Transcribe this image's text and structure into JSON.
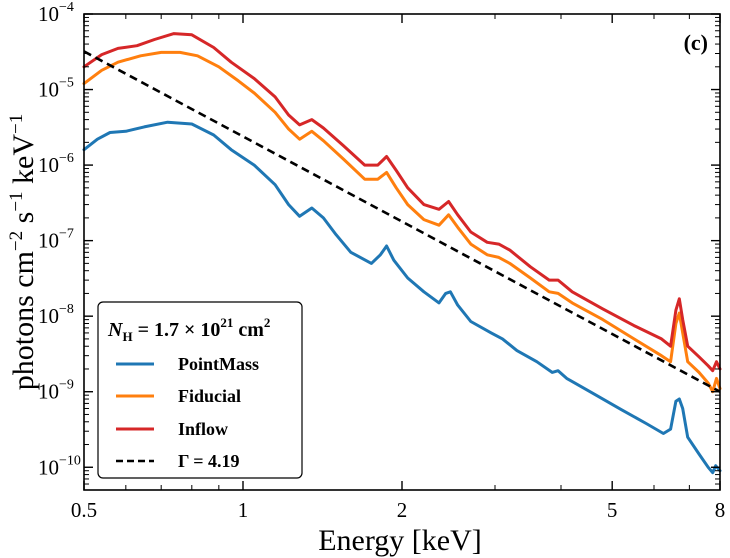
{
  "chart_data": {
    "type": "line",
    "panel_label": "(c)",
    "xlabel": "Energy [keV]",
    "ylabel": "photons cm",
    "ylabel_parts": {
      "a": "photons cm",
      "b": "−2",
      "c": " s",
      "d": "−1",
      "e": " keV",
      "f": "−1"
    },
    "xscale": "log",
    "yscale": "log",
    "xlim": [
      0.5,
      8
    ],
    "ylim": [
      5e-11,
      0.0001
    ],
    "x_ticks": [
      {
        "value": 0.5,
        "label": "0.5"
      },
      {
        "value": 1,
        "label": "1"
      },
      {
        "value": 2,
        "label": "2"
      },
      {
        "value": 5,
        "label": "5"
      },
      {
        "value": 8,
        "label": "8"
      }
    ],
    "y_ticks": [
      {
        "value": 1e-10,
        "base": "10",
        "exp": "−10"
      },
      {
        "value": 1e-09,
        "base": "10",
        "exp": "−9"
      },
      {
        "value": 1e-08,
        "base": "10",
        "exp": "−8"
      },
      {
        "value": 1e-07,
        "base": "10",
        "exp": "−7"
      },
      {
        "value": 1e-06,
        "base": "10",
        "exp": "−6"
      },
      {
        "value": 1e-05,
        "base": "10",
        "exp": "−5"
      },
      {
        "value": 0.0001,
        "base": "10",
        "exp": "−4"
      }
    ],
    "legend": {
      "placement": "lower-left",
      "title": {
        "N": "N",
        "H": "H",
        "eq": " = 1.7 × 10",
        "exp": "21",
        "unit": " cm",
        "unit_exp": "2"
      }
    },
    "series": [
      {
        "name": "PointMass",
        "color": "#1f77b4",
        "style": "solid",
        "points": [
          [
            0.5,
            1.6e-06
          ],
          [
            0.53,
            2.2e-06
          ],
          [
            0.56,
            2.7e-06
          ],
          [
            0.6,
            2.8e-06
          ],
          [
            0.65,
            3.2e-06
          ],
          [
            0.72,
            3.7e-06
          ],
          [
            0.8,
            3.5e-06
          ],
          [
            0.88,
            2.5e-06
          ],
          [
            0.95,
            1.6e-06
          ],
          [
            1.05,
            1e-06
          ],
          [
            1.15,
            5.5e-07
          ],
          [
            1.22,
            3e-07
          ],
          [
            1.28,
            2.1e-07
          ],
          [
            1.35,
            2.7e-07
          ],
          [
            1.42,
            2e-07
          ],
          [
            1.5,
            1.2e-07
          ],
          [
            1.6,
            7e-08
          ],
          [
            1.75,
            5e-08
          ],
          [
            1.82,
            6.5e-08
          ],
          [
            1.87,
            8.5e-08
          ],
          [
            1.93,
            5.5e-08
          ],
          [
            2.05,
            3.2e-08
          ],
          [
            2.2,
            2.1e-08
          ],
          [
            2.35,
            1.5e-08
          ],
          [
            2.42,
            2e-08
          ],
          [
            2.47,
            2.1e-08
          ],
          [
            2.55,
            1.4e-08
          ],
          [
            2.7,
            8.5e-09
          ],
          [
            2.95,
            6e-09
          ],
          [
            3.1,
            5e-09
          ],
          [
            3.3,
            3.5e-09
          ],
          [
            3.6,
            2.5e-09
          ],
          [
            3.85,
            1.8e-09
          ],
          [
            3.95,
            1.9e-09
          ],
          [
            4.1,
            1.5e-09
          ],
          [
            4.6,
            9.5e-10
          ],
          [
            5.2,
            5.8e-10
          ],
          [
            5.8,
            3.8e-10
          ],
          [
            6.25,
            2.8e-10
          ],
          [
            6.45,
            3.2e-10
          ],
          [
            6.6,
            7.5e-10
          ],
          [
            6.7,
            8e-10
          ],
          [
            6.8,
            6e-10
          ],
          [
            6.95,
            2.5e-10
          ],
          [
            7.3,
            1.5e-10
          ],
          [
            7.6,
            1e-10
          ],
          [
            7.75,
            8.5e-11
          ],
          [
            7.85,
            1.05e-10
          ],
          [
            8.0,
            9e-11
          ]
        ]
      },
      {
        "name": "Fiducial",
        "color": "#ff7f0e",
        "style": "solid",
        "points": [
          [
            0.5,
            1.2e-05
          ],
          [
            0.54,
            1.8e-05
          ],
          [
            0.58,
            2.3e-05
          ],
          [
            0.64,
            2.8e-05
          ],
          [
            0.7,
            3.1e-05
          ],
          [
            0.76,
            3.1e-05
          ],
          [
            0.82,
            2.8e-05
          ],
          [
            0.9,
            2e-05
          ],
          [
            0.98,
            1.3e-05
          ],
          [
            1.05,
            9e-06
          ],
          [
            1.15,
            5e-06
          ],
          [
            1.22,
            3e-06
          ],
          [
            1.28,
            2.2e-06
          ],
          [
            1.35,
            2.8e-06
          ],
          [
            1.42,
            2.1e-06
          ],
          [
            1.55,
            1.2e-06
          ],
          [
            1.7,
            6.5e-07
          ],
          [
            1.8,
            6.5e-07
          ],
          [
            1.87,
            8e-07
          ],
          [
            1.95,
            5e-07
          ],
          [
            2.05,
            3e-07
          ],
          [
            2.2,
            1.9e-07
          ],
          [
            2.35,
            1.6e-07
          ],
          [
            2.45,
            2.2e-07
          ],
          [
            2.55,
            1.5e-07
          ],
          [
            2.7,
            9e-08
          ],
          [
            2.9,
            6.5e-08
          ],
          [
            3.05,
            6e-08
          ],
          [
            3.2,
            5e-08
          ],
          [
            3.5,
            3.2e-08
          ],
          [
            3.8,
            2.1e-08
          ],
          [
            3.95,
            2e-08
          ],
          [
            4.2,
            1.5e-08
          ],
          [
            4.8,
            9e-09
          ],
          [
            5.5,
            5e-09
          ],
          [
            6.2,
            3e-09
          ],
          [
            6.45,
            2.5e-09
          ],
          [
            6.6,
            8e-09
          ],
          [
            6.7,
            1.1e-08
          ],
          [
            6.8,
            6e-09
          ],
          [
            6.95,
            2.5e-09
          ],
          [
            7.3,
            1.8e-09
          ],
          [
            7.6,
            1.3e-09
          ],
          [
            7.75,
            1e-09
          ],
          [
            7.88,
            1.5e-09
          ],
          [
            8.0,
            1.1e-09
          ]
        ]
      },
      {
        "name": "Inflow",
        "color": "#d62728",
        "style": "solid",
        "points": [
          [
            0.5,
            2e-05
          ],
          [
            0.54,
            2.9e-05
          ],
          [
            0.58,
            3.5e-05
          ],
          [
            0.63,
            3.8e-05
          ],
          [
            0.68,
            4.6e-05
          ],
          [
            0.74,
            5.5e-05
          ],
          [
            0.8,
            5.3e-05
          ],
          [
            0.88,
            3.6e-05
          ],
          [
            0.95,
            2.3e-05
          ],
          [
            1.05,
            1.4e-05
          ],
          [
            1.15,
            8e-06
          ],
          [
            1.22,
            4.6e-06
          ],
          [
            1.28,
            3.4e-06
          ],
          [
            1.35,
            4e-06
          ],
          [
            1.42,
            3.1e-06
          ],
          [
            1.55,
            1.8e-06
          ],
          [
            1.7,
            1e-06
          ],
          [
            1.8,
            1e-06
          ],
          [
            1.87,
            1.3e-06
          ],
          [
            1.95,
            8.5e-07
          ],
          [
            2.05,
            5e-07
          ],
          [
            2.2,
            3e-07
          ],
          [
            2.35,
            2.6e-07
          ],
          [
            2.45,
            3.3e-07
          ],
          [
            2.55,
            2.2e-07
          ],
          [
            2.7,
            1.3e-07
          ],
          [
            2.9,
            9.5e-08
          ],
          [
            3.05,
            9e-08
          ],
          [
            3.2,
            7.5e-08
          ],
          [
            3.5,
            4.5e-08
          ],
          [
            3.8,
            3e-08
          ],
          [
            3.95,
            3e-08
          ],
          [
            4.2,
            2.1e-08
          ],
          [
            4.8,
            1.25e-08
          ],
          [
            5.5,
            7.5e-09
          ],
          [
            6.2,
            5e-09
          ],
          [
            6.45,
            4e-09
          ],
          [
            6.6,
            1.2e-08
          ],
          [
            6.7,
            1.7e-08
          ],
          [
            6.8,
            9e-09
          ],
          [
            6.95,
            4e-09
          ],
          [
            7.3,
            2.9e-09
          ],
          [
            7.6,
            2.2e-09
          ],
          [
            7.75,
            1.9e-09
          ],
          [
            7.88,
            2.5e-09
          ],
          [
            8.0,
            2e-09
          ]
        ]
      },
      {
        "name": "Γ = 4.19",
        "color": "#000000",
        "style": "dashed",
        "points": [
          [
            0.5,
            3.2e-05
          ],
          [
            8.0,
            1e-09
          ]
        ]
      }
    ]
  }
}
